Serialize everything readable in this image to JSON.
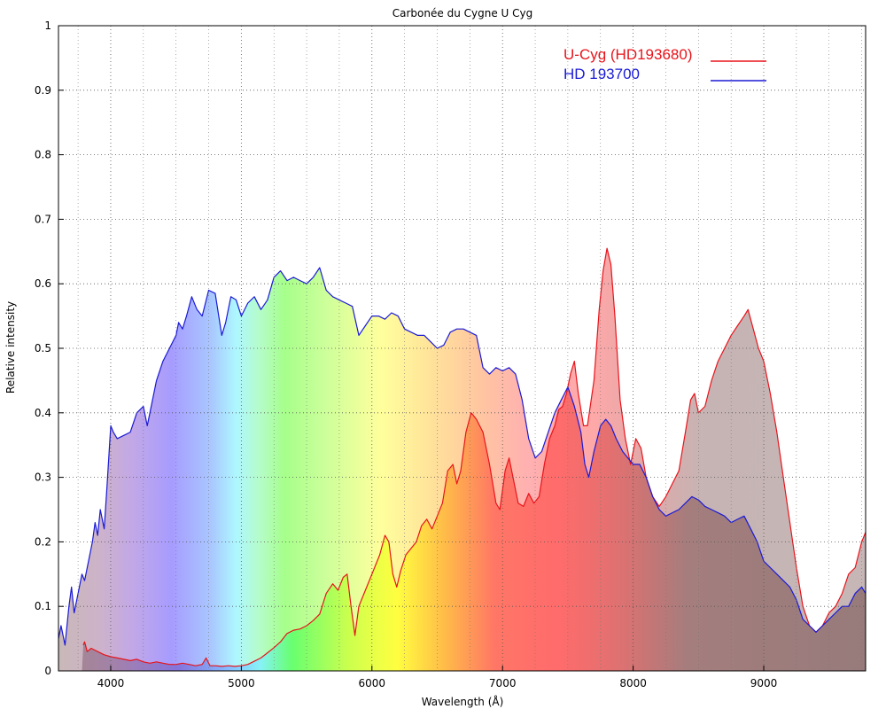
{
  "chart_data": {
    "type": "area",
    "title": "Carbonée du Cygne U Cyg",
    "xlabel": "Wavelength (Å)",
    "ylabel": "Relative intensity",
    "xlim": [
      3600,
      9780
    ],
    "ylim": [
      0,
      1
    ],
    "x_ticks": [
      4000,
      5000,
      6000,
      7000,
      8000,
      9000
    ],
    "y_ticks": [
      0,
      0.1,
      0.2,
      0.3,
      0.4,
      0.5,
      0.6,
      0.7,
      0.8,
      0.9,
      1
    ],
    "y_tick_labels": [
      "0",
      "0.1",
      "0.2",
      "0.3",
      "0.4",
      "0.5",
      "0.6",
      "0.7",
      "0.8",
      "0.9",
      "1"
    ],
    "grid": true,
    "legend_position": "top-right",
    "background": "visible-spectrum gradient",
    "series": [
      {
        "name": "U-Cyg (HD193680)",
        "color": "#e8141b",
        "points": [
          [
            3790,
            0.04
          ],
          [
            3800,
            0.045
          ],
          [
            3820,
            0.03
          ],
          [
            3850,
            0.035
          ],
          [
            3900,
            0.03
          ],
          [
            3950,
            0.025
          ],
          [
            4000,
            0.022
          ],
          [
            4050,
            0.02
          ],
          [
            4100,
            0.018
          ],
          [
            4150,
            0.016
          ],
          [
            4200,
            0.018
          ],
          [
            4250,
            0.014
          ],
          [
            4300,
            0.012
          ],
          [
            4350,
            0.014
          ],
          [
            4400,
            0.012
          ],
          [
            4450,
            0.01
          ],
          [
            4500,
            0.01
          ],
          [
            4550,
            0.012
          ],
          [
            4600,
            0.01
          ],
          [
            4650,
            0.008
          ],
          [
            4700,
            0.01
          ],
          [
            4730,
            0.02
          ],
          [
            4760,
            0.008
          ],
          [
            4800,
            0.008
          ],
          [
            4850,
            0.007
          ],
          [
            4900,
            0.008
          ],
          [
            4950,
            0.007
          ],
          [
            5000,
            0.008
          ],
          [
            5050,
            0.01
          ],
          [
            5100,
            0.015
          ],
          [
            5150,
            0.02
          ],
          [
            5200,
            0.028
          ],
          [
            5250,
            0.036
          ],
          [
            5300,
            0.045
          ],
          [
            5350,
            0.058
          ],
          [
            5400,
            0.063
          ],
          [
            5450,
            0.065
          ],
          [
            5500,
            0.07
          ],
          [
            5550,
            0.078
          ],
          [
            5600,
            0.088
          ],
          [
            5650,
            0.12
          ],
          [
            5700,
            0.135
          ],
          [
            5740,
            0.125
          ],
          [
            5780,
            0.145
          ],
          [
            5810,
            0.15
          ],
          [
            5840,
            0.1
          ],
          [
            5870,
            0.055
          ],
          [
            5900,
            0.1
          ],
          [
            5950,
            0.125
          ],
          [
            6000,
            0.15
          ],
          [
            6030,
            0.165
          ],
          [
            6060,
            0.18
          ],
          [
            6100,
            0.21
          ],
          [
            6130,
            0.2
          ],
          [
            6160,
            0.15
          ],
          [
            6190,
            0.13
          ],
          [
            6220,
            0.155
          ],
          [
            6260,
            0.18
          ],
          [
            6300,
            0.19
          ],
          [
            6340,
            0.2
          ],
          [
            6380,
            0.225
          ],
          [
            6420,
            0.235
          ],
          [
            6460,
            0.22
          ],
          [
            6500,
            0.24
          ],
          [
            6540,
            0.26
          ],
          [
            6580,
            0.31
          ],
          [
            6620,
            0.32
          ],
          [
            6650,
            0.29
          ],
          [
            6680,
            0.31
          ],
          [
            6720,
            0.37
          ],
          [
            6760,
            0.4
          ],
          [
            6800,
            0.39
          ],
          [
            6850,
            0.37
          ],
          [
            6900,
            0.32
          ],
          [
            6950,
            0.26
          ],
          [
            6980,
            0.25
          ],
          [
            7020,
            0.31
          ],
          [
            7050,
            0.33
          ],
          [
            7080,
            0.3
          ],
          [
            7120,
            0.26
          ],
          [
            7160,
            0.255
          ],
          [
            7200,
            0.275
          ],
          [
            7240,
            0.26
          ],
          [
            7280,
            0.27
          ],
          [
            7320,
            0.32
          ],
          [
            7360,
            0.36
          ],
          [
            7400,
            0.38
          ],
          [
            7430,
            0.405
          ],
          [
            7460,
            0.41
          ],
          [
            7490,
            0.43
          ],
          [
            7520,
            0.46
          ],
          [
            7550,
            0.48
          ],
          [
            7580,
            0.43
          ],
          [
            7620,
            0.38
          ],
          [
            7650,
            0.38
          ],
          [
            7700,
            0.45
          ],
          [
            7740,
            0.56
          ],
          [
            7770,
            0.62
          ],
          [
            7800,
            0.655
          ],
          [
            7830,
            0.63
          ],
          [
            7860,
            0.55
          ],
          [
            7900,
            0.42
          ],
          [
            7940,
            0.36
          ],
          [
            7980,
            0.32
          ],
          [
            8020,
            0.36
          ],
          [
            8060,
            0.345
          ],
          [
            8100,
            0.3
          ],
          [
            8150,
            0.27
          ],
          [
            8200,
            0.255
          ],
          [
            8250,
            0.27
          ],
          [
            8300,
            0.29
          ],
          [
            8350,
            0.31
          ],
          [
            8400,
            0.37
          ],
          [
            8440,
            0.42
          ],
          [
            8470,
            0.43
          ],
          [
            8500,
            0.4
          ],
          [
            8550,
            0.41
          ],
          [
            8600,
            0.45
          ],
          [
            8650,
            0.48
          ],
          [
            8700,
            0.5
          ],
          [
            8750,
            0.52
          ],
          [
            8800,
            0.535
          ],
          [
            8850,
            0.55
          ],
          [
            8880,
            0.56
          ],
          [
            8920,
            0.53
          ],
          [
            8960,
            0.5
          ],
          [
            9000,
            0.48
          ],
          [
            9050,
            0.43
          ],
          [
            9100,
            0.37
          ],
          [
            9150,
            0.3
          ],
          [
            9200,
            0.23
          ],
          [
            9250,
            0.16
          ],
          [
            9300,
            0.1
          ],
          [
            9350,
            0.07
          ],
          [
            9400,
            0.06
          ],
          [
            9450,
            0.07
          ],
          [
            9500,
            0.09
          ],
          [
            9550,
            0.1
          ],
          [
            9600,
            0.12
          ],
          [
            9650,
            0.15
          ],
          [
            9700,
            0.16
          ],
          [
            9750,
            0.2
          ],
          [
            9780,
            0.215
          ]
        ]
      },
      {
        "name": "HD 193700",
        "color": "#1a1ad6",
        "points": [
          [
            3600,
            0.05
          ],
          [
            3620,
            0.07
          ],
          [
            3650,
            0.04
          ],
          [
            3680,
            0.1
          ],
          [
            3700,
            0.13
          ],
          [
            3720,
            0.09
          ],
          [
            3750,
            0.12
          ],
          [
            3780,
            0.15
          ],
          [
            3800,
            0.14
          ],
          [
            3830,
            0.17
          ],
          [
            3860,
            0.2
          ],
          [
            3880,
            0.23
          ],
          [
            3900,
            0.21
          ],
          [
            3920,
            0.25
          ],
          [
            3950,
            0.22
          ],
          [
            3970,
            0.28
          ],
          [
            4000,
            0.38
          ],
          [
            4020,
            0.37
          ],
          [
            4050,
            0.36
          ],
          [
            4100,
            0.365
          ],
          [
            4150,
            0.37
          ],
          [
            4200,
            0.4
          ],
          [
            4250,
            0.41
          ],
          [
            4280,
            0.38
          ],
          [
            4300,
            0.4
          ],
          [
            4350,
            0.45
          ],
          [
            4400,
            0.48
          ],
          [
            4450,
            0.5
          ],
          [
            4500,
            0.52
          ],
          [
            4520,
            0.54
          ],
          [
            4550,
            0.53
          ],
          [
            4580,
            0.55
          ],
          [
            4620,
            0.58
          ],
          [
            4660,
            0.56
          ],
          [
            4700,
            0.55
          ],
          [
            4750,
            0.59
          ],
          [
            4800,
            0.585
          ],
          [
            4850,
            0.52
          ],
          [
            4880,
            0.54
          ],
          [
            4920,
            0.58
          ],
          [
            4960,
            0.575
          ],
          [
            5000,
            0.55
          ],
          [
            5050,
            0.57
          ],
          [
            5100,
            0.58
          ],
          [
            5150,
            0.56
          ],
          [
            5200,
            0.575
          ],
          [
            5250,
            0.61
          ],
          [
            5300,
            0.62
          ],
          [
            5350,
            0.605
          ],
          [
            5400,
            0.61
          ],
          [
            5450,
            0.605
          ],
          [
            5500,
            0.6
          ],
          [
            5550,
            0.61
          ],
          [
            5600,
            0.625
          ],
          [
            5650,
            0.59
          ],
          [
            5700,
            0.58
          ],
          [
            5750,
            0.575
          ],
          [
            5800,
            0.57
          ],
          [
            5850,
            0.565
          ],
          [
            5900,
            0.52
          ],
          [
            5950,
            0.535
          ],
          [
            6000,
            0.55
          ],
          [
            6050,
            0.55
          ],
          [
            6100,
            0.545
          ],
          [
            6150,
            0.555
          ],
          [
            6200,
            0.55
          ],
          [
            6250,
            0.53
          ],
          [
            6300,
            0.525
          ],
          [
            6350,
            0.52
          ],
          [
            6400,
            0.52
          ],
          [
            6450,
            0.51
          ],
          [
            6500,
            0.5
          ],
          [
            6550,
            0.505
          ],
          [
            6600,
            0.525
          ],
          [
            6650,
            0.53
          ],
          [
            6700,
            0.53
          ],
          [
            6750,
            0.525
          ],
          [
            6800,
            0.52
          ],
          [
            6850,
            0.47
          ],
          [
            6900,
            0.46
          ],
          [
            6950,
            0.47
          ],
          [
            7000,
            0.465
          ],
          [
            7050,
            0.47
          ],
          [
            7100,
            0.46
          ],
          [
            7150,
            0.42
          ],
          [
            7200,
            0.36
          ],
          [
            7250,
            0.33
          ],
          [
            7300,
            0.34
          ],
          [
            7350,
            0.37
          ],
          [
            7400,
            0.4
          ],
          [
            7450,
            0.42
          ],
          [
            7500,
            0.44
          ],
          [
            7550,
            0.41
          ],
          [
            7600,
            0.37
          ],
          [
            7630,
            0.32
          ],
          [
            7660,
            0.3
          ],
          [
            7700,
            0.34
          ],
          [
            7750,
            0.38
          ],
          [
            7790,
            0.39
          ],
          [
            7830,
            0.38
          ],
          [
            7870,
            0.36
          ],
          [
            7920,
            0.34
          ],
          [
            7960,
            0.33
          ],
          [
            8000,
            0.32
          ],
          [
            8050,
            0.32
          ],
          [
            8100,
            0.3
          ],
          [
            8150,
            0.27
          ],
          [
            8200,
            0.25
          ],
          [
            8250,
            0.24
          ],
          [
            8300,
            0.245
          ],
          [
            8350,
            0.25
          ],
          [
            8400,
            0.26
          ],
          [
            8450,
            0.27
          ],
          [
            8500,
            0.265
          ],
          [
            8550,
            0.255
          ],
          [
            8600,
            0.25
          ],
          [
            8650,
            0.245
          ],
          [
            8700,
            0.24
          ],
          [
            8750,
            0.23
          ],
          [
            8800,
            0.235
          ],
          [
            8850,
            0.24
          ],
          [
            8900,
            0.22
          ],
          [
            8950,
            0.2
          ],
          [
            9000,
            0.17
          ],
          [
            9050,
            0.16
          ],
          [
            9100,
            0.15
          ],
          [
            9150,
            0.14
          ],
          [
            9200,
            0.13
          ],
          [
            9250,
            0.11
          ],
          [
            9300,
            0.08
          ],
          [
            9350,
            0.07
          ],
          [
            9400,
            0.06
          ],
          [
            9450,
            0.07
          ],
          [
            9500,
            0.08
          ],
          [
            9550,
            0.09
          ],
          [
            9600,
            0.1
          ],
          [
            9650,
            0.1
          ],
          [
            9700,
            0.12
          ],
          [
            9750,
            0.13
          ],
          [
            9780,
            0.12
          ]
        ]
      }
    ]
  }
}
